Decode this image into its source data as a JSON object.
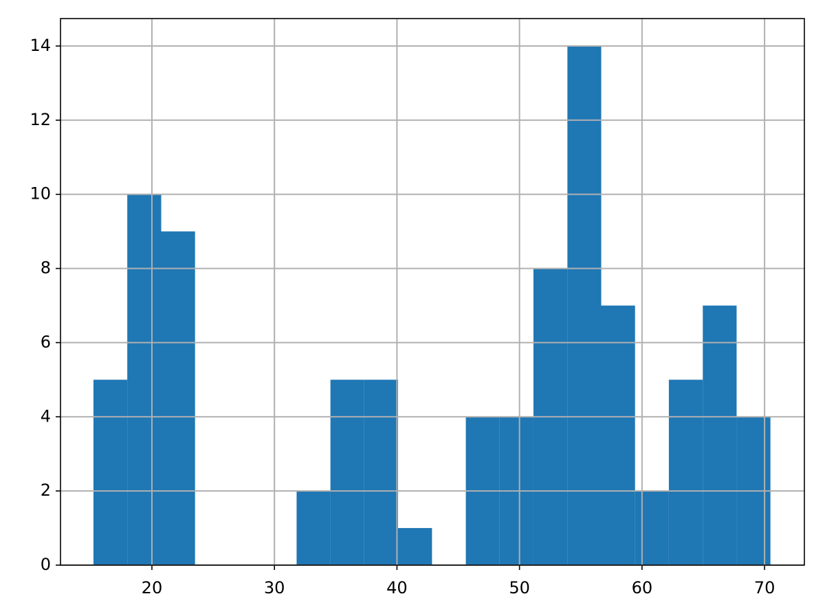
{
  "chart_data": {
    "type": "histogram",
    "bins": [
      15.23,
      17.99,
      20.76,
      23.52,
      26.28,
      29.04,
      31.81,
      34.57,
      37.33,
      40.09,
      42.86,
      45.62,
      48.38,
      51.14,
      53.91,
      56.67,
      59.43,
      62.19,
      64.96,
      67.72,
      70.48
    ],
    "values": [
      5,
      10,
      9,
      0,
      0,
      0,
      2,
      5,
      5,
      1,
      0,
      4,
      4,
      8,
      14,
      7,
      2,
      5,
      7,
      4
    ],
    "color": "#1f77b4",
    "xlim": [
      12.54,
      73.25
    ],
    "xticks": [
      20,
      30,
      40,
      50,
      60,
      70
    ],
    "ylim": [
      0,
      14.74
    ],
    "yticks": [
      0,
      2,
      4,
      6,
      8,
      10,
      12,
      14
    ],
    "grid": true
  }
}
